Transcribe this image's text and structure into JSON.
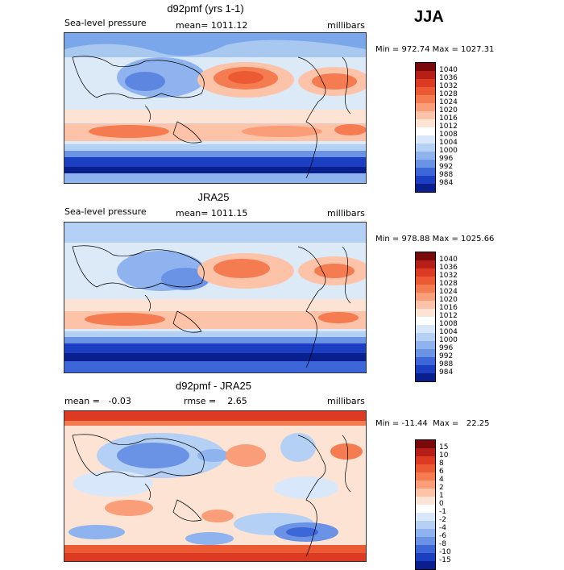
{
  "season": "JJA",
  "panels": [
    {
      "title": "d92pmf (yrs 1-1)",
      "left_label": "Sea-level pressure",
      "mid_label": "mean=  1011.12",
      "right_label": "millibars",
      "minmax": "Min = 972.74  Max = 1027.31",
      "colorbar_labels": [
        "1040",
        "1036",
        "1032",
        "1028",
        "1024",
        "1020",
        "1016",
        "1012",
        "1008",
        "1004",
        "1000",
        "996",
        "992",
        "988",
        "984"
      ],
      "colorbar_colors": [
        "#7a0a0a",
        "#b81e18",
        "#dc3a22",
        "#ec5a34",
        "#f47c50",
        "#f99e78",
        "#fcc3a8",
        "#fde3d3",
        "#ffffff",
        "#d8e8fa",
        "#b4d0f4",
        "#8fb3ee",
        "#6a93e6",
        "#3d67d8",
        "#1c3fc2",
        "#0a1f8e"
      ]
    },
    {
      "title": "JRA25",
      "left_label": "Sea-level pressure",
      "mid_label": "mean=  1011.15",
      "right_label": "millibars",
      "minmax": "Min = 978.88  Max = 1025.66",
      "colorbar_labels": [
        "1040",
        "1036",
        "1032",
        "1028",
        "1024",
        "1020",
        "1016",
        "1012",
        "1008",
        "1004",
        "1000",
        "996",
        "992",
        "988",
        "984"
      ],
      "colorbar_colors": [
        "#7a0a0a",
        "#b81e18",
        "#dc3a22",
        "#ec5a34",
        "#f47c50",
        "#f99e78",
        "#fcc3a8",
        "#fde3d3",
        "#ffffff",
        "#d8e8fa",
        "#b4d0f4",
        "#8fb3ee",
        "#6a93e6",
        "#3d67d8",
        "#1c3fc2",
        "#0a1f8e"
      ]
    },
    {
      "title": "d92pmf - JRA25",
      "left_label": "mean =   -0.03",
      "mid_label": "rmse =    2.65",
      "right_label": "millibars",
      "minmax": "Min = -11.44  Max =   22.25",
      "colorbar_labels": [
        "15",
        "10",
        "8",
        "6",
        "4",
        "2",
        "1",
        "0",
        "-1",
        "-2",
        "-4",
        "-6",
        "-8",
        "-10",
        "-15"
      ],
      "colorbar_colors": [
        "#7a0a0a",
        "#b81e18",
        "#dc3a22",
        "#ec5a34",
        "#f47c50",
        "#f99e78",
        "#fcc3a8",
        "#fde3d3",
        "#ffffff",
        "#d8e8fa",
        "#b4d0f4",
        "#8fb3ee",
        "#6a93e6",
        "#3d67d8",
        "#1c3fc2",
        "#0a1f8e"
      ]
    }
  ]
}
